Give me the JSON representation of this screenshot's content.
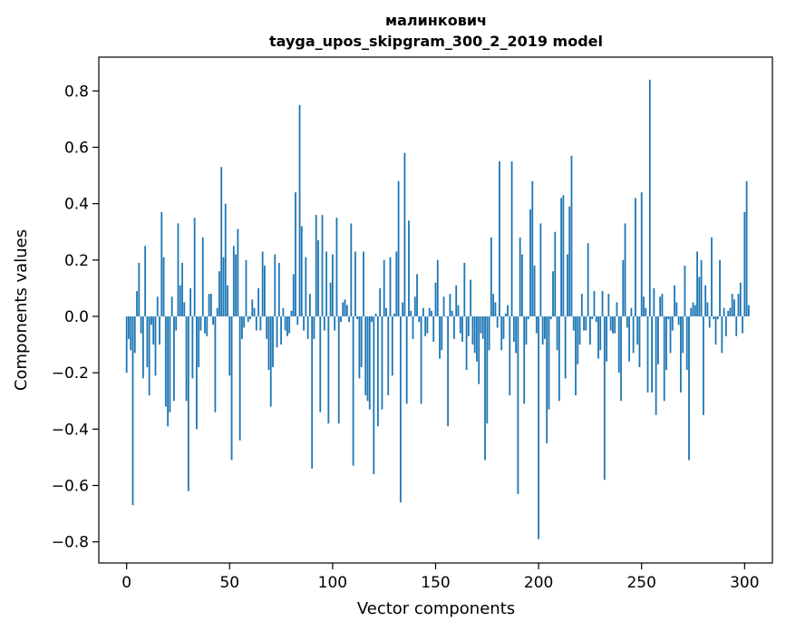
{
  "chart_data": {
    "type": "bar",
    "title": "малинкович",
    "subtitle": "tayga_upos_skipgram_300_2_2019 model",
    "xlabel": "Vector components",
    "ylabel": "Components values",
    "xlim": [
      -13.5,
      313.5
    ],
    "ylim": [
      -0.875,
      0.92
    ],
    "xticks": [
      0,
      50,
      100,
      150,
      200,
      250,
      300
    ],
    "yticks": [
      -0.8,
      -0.6,
      -0.4,
      -0.2,
      0.0,
      0.2,
      0.4,
      0.6,
      0.8
    ],
    "ytick_labels": [
      "−0.8",
      "−0.6",
      "−0.4",
      "−0.2",
      "0.0",
      "0.2",
      "0.4",
      "0.6",
      "0.8"
    ],
    "grid": false,
    "bar_color": "#1f77b4",
    "series": [
      {
        "values": [
          -0.2,
          -0.08,
          -0.12,
          -0.67,
          -0.13,
          0.09,
          0.19,
          -0.06,
          -0.22,
          0.25,
          -0.18,
          -0.28,
          -0.03,
          -0.1,
          -0.21,
          0.07,
          -0.1,
          0.37,
          0.21,
          -0.32,
          -0.39,
          -0.34,
          0.07,
          -0.3,
          -0.05,
          0.33,
          0.11,
          0.19,
          0.05,
          -0.3,
          -0.62,
          0.1,
          -0.22,
          0.35,
          -0.4,
          -0.18,
          -0.05,
          0.28,
          -0.06,
          -0.07,
          0.08,
          0.08,
          -0.03,
          -0.34,
          0.03,
          0.16,
          0.53,
          0.21,
          0.4,
          0.11,
          -0.21,
          -0.51,
          0.25,
          0.22,
          0.31,
          -0.44,
          -0.08,
          -0.04,
          0.2,
          -0.02,
          -0.01,
          0.06,
          0.03,
          -0.05,
          0.1,
          -0.05,
          0.23,
          0.18,
          -0.08,
          -0.19,
          -0.32,
          -0.18,
          0.22,
          -0.11,
          0.19,
          -0.1,
          0.03,
          -0.05,
          -0.07,
          -0.06,
          0.02,
          0.15,
          0.44,
          -0.03,
          0.75,
          0.32,
          -0.05,
          0.21,
          -0.08,
          0.08,
          -0.54,
          -0.08,
          0.36,
          0.27,
          -0.34,
          0.36,
          -0.05,
          0.23,
          -0.38,
          0.12,
          0.22,
          -0.05,
          0.35,
          -0.38,
          -0.02,
          0.05,
          0.06,
          0.04,
          -0.02,
          0.33,
          -0.53,
          0.23,
          -0.01,
          -0.22,
          -0.18,
          0.23,
          -0.28,
          -0.3,
          -0.33,
          -0.02,
          -0.56,
          0.01,
          -0.39,
          0.1,
          -0.33,
          0.2,
          0.03,
          -0.28,
          0.21,
          -0.21,
          0.01,
          0.23,
          0.48,
          -0.66,
          0.05,
          0.58,
          -0.31,
          0.34,
          0.02,
          -0.08,
          0.07,
          0.15,
          -0.02,
          -0.31,
          0.03,
          -0.07,
          -0.06,
          0.03,
          0.02,
          -0.09,
          0.12,
          0.2,
          -0.15,
          -0.12,
          0.07,
          0.0,
          -0.39,
          0.08,
          0.02,
          -0.08,
          0.11,
          0.04,
          -0.06,
          -0.09,
          0.19,
          -0.19,
          -0.07,
          0.13,
          -0.1,
          -0.13,
          -0.16,
          -0.24,
          -0.06,
          -0.08,
          -0.51,
          -0.38,
          -0.12,
          0.28,
          0.08,
          0.05,
          -0.04,
          0.55,
          -0.12,
          -0.08,
          0.01,
          0.04,
          -0.28,
          0.55,
          -0.09,
          -0.13,
          -0.63,
          0.28,
          0.22,
          -0.31,
          -0.1,
          -0.01,
          0.38,
          0.48,
          0.18,
          -0.06,
          -0.79,
          0.33,
          -0.1,
          -0.08,
          -0.45,
          -0.33,
          -0.01,
          0.16,
          0.3,
          -0.12,
          -0.3,
          0.42,
          0.43,
          -0.22,
          0.22,
          0.39,
          0.57,
          -0.05,
          -0.28,
          -0.17,
          -0.1,
          0.08,
          -0.05,
          -0.05,
          0.26,
          -0.1,
          -0.01,
          0.09,
          -0.02,
          -0.15,
          -0.12,
          0.09,
          -0.58,
          -0.16,
          0.08,
          -0.05,
          -0.06,
          -0.06,
          0.05,
          -0.2,
          -0.3,
          0.2,
          0.33,
          -0.04,
          -0.16,
          0.03,
          -0.13,
          0.42,
          -0.1,
          -0.18,
          0.44,
          0.07,
          0.03,
          -0.27,
          0.84,
          -0.27,
          0.1,
          -0.35,
          -0.17,
          0.07,
          0.08,
          -0.3,
          -0.19,
          -0.01,
          -0.13,
          -0.05,
          0.11,
          0.05,
          -0.03,
          -0.27,
          -0.13,
          0.18,
          -0.19,
          -0.51,
          0.03,
          0.05,
          0.04,
          0.23,
          0.14,
          0.2,
          -0.35,
          0.11,
          0.05,
          -0.04,
          0.28,
          -0.01,
          -0.1,
          -0.01,
          0.2,
          -0.13,
          0.03,
          -0.07,
          0.02,
          0.03,
          0.08,
          0.06,
          -0.07,
          0.08,
          0.12,
          -0.06,
          0.37,
          0.48,
          0.04
        ]
      }
    ]
  }
}
